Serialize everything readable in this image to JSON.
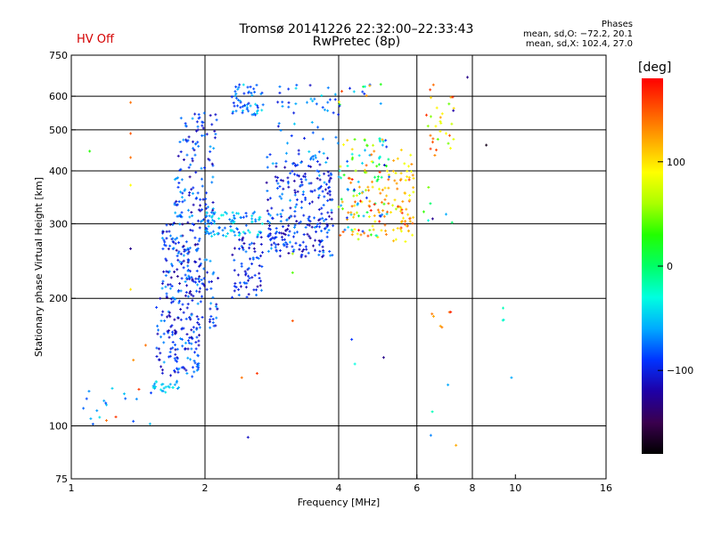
{
  "header": {
    "title": "Tromsø 20141226 22:32:00–22:33:43",
    "subtitle": "RwPretec (8p)",
    "status": "HV Off"
  },
  "phases": {
    "title": "Phases",
    "o_stats": "mean, sd,O: −72.2, 20.1",
    "x_stats": "mean, sd,X: 102.4, 27.0"
  },
  "colorbar": {
    "label": "[deg]",
    "ticks": [
      "100",
      "0",
      "−100"
    ],
    "tick_values": [
      100,
      0,
      -100
    ],
    "range": [
      -180,
      180
    ],
    "colors": [
      "#000000",
      "#3a004e",
      "#1e00a6",
      "#0033ff",
      "#00aaff",
      "#00ffe0",
      "#00ff66",
      "#22ff00",
      "#aaff00",
      "#ffff00",
      "#ffaa00",
      "#ff5500",
      "#ff0000"
    ]
  },
  "chart_data": {
    "type": "scatter",
    "title": "Tromsø 20141226 22:32:00–22:33:43",
    "subtitle": "RwPretec (8p)",
    "xlabel": "Frequency [MHz]",
    "ylabel": "Stationary phase Virtual Height [km]",
    "x_scale": "log",
    "y_scale": "log",
    "xlim": [
      1,
      16
    ],
    "ylim": [
      75,
      750
    ],
    "x_ticks": [
      1,
      2,
      4,
      6,
      8,
      10,
      16
    ],
    "y_ticks": [
      75,
      100,
      200,
      300,
      400,
      500,
      600,
      750
    ],
    "x_gridlines": [
      2,
      4,
      6,
      8
    ],
    "y_gridlines": [
      100,
      200,
      300,
      400,
      500,
      600
    ],
    "grid": true,
    "clusters": [
      {
        "fmin": 1.05,
        "fmax": 1.55,
        "hmin": 100,
        "hmax": 125,
        "n": 18,
        "pmin": -90,
        "pmax": -40
      },
      {
        "fmin": 1.5,
        "fmax": 1.75,
        "hmin": 120,
        "hmax": 128,
        "n": 25,
        "pmin": -70,
        "pmax": -30
      },
      {
        "fmin": 1.55,
        "fmax": 1.95,
        "hmin": 130,
        "hmax": 200,
        "n": 140,
        "pmin": -125,
        "pmax": -60
      },
      {
        "fmin": 1.6,
        "fmax": 1.95,
        "hmin": 200,
        "hmax": 300,
        "n": 140,
        "pmin": -130,
        "pmax": -60
      },
      {
        "fmin": 1.7,
        "fmax": 2.1,
        "hmin": 300,
        "hmax": 440,
        "n": 90,
        "pmin": -125,
        "pmax": -55
      },
      {
        "fmin": 1.75,
        "fmax": 2.15,
        "hmin": 440,
        "hmax": 550,
        "n": 45,
        "pmin": -120,
        "pmax": -60
      },
      {
        "fmin": 1.9,
        "fmax": 2.15,
        "hmin": 170,
        "hmax": 250,
        "n": 45,
        "pmin": -120,
        "pmax": -60
      },
      {
        "fmin": 2.0,
        "fmax": 2.7,
        "hmin": 280,
        "hmax": 320,
        "n": 90,
        "pmin": -90,
        "pmax": -30
      },
      {
        "fmin": 2.3,
        "fmax": 2.7,
        "hmin": 200,
        "hmax": 280,
        "n": 70,
        "pmin": -125,
        "pmax": -70
      },
      {
        "fmin": 2.3,
        "fmax": 2.75,
        "hmin": 540,
        "hmax": 640,
        "n": 55,
        "pmin": -100,
        "pmax": -40
      },
      {
        "fmin": 2.75,
        "fmax": 3.9,
        "hmin": 250,
        "hmax": 320,
        "n": 150,
        "pmin": -125,
        "pmax": -60
      },
      {
        "fmin": 2.75,
        "fmax": 3.9,
        "hmin": 320,
        "hmax": 440,
        "n": 130,
        "pmin": -125,
        "pmax": -55
      },
      {
        "fmin": 2.9,
        "fmax": 4.0,
        "hmin": 440,
        "hmax": 640,
        "n": 45,
        "pmin": -110,
        "pmax": -40
      },
      {
        "fmin": 4.0,
        "fmax": 5.2,
        "hmin": 280,
        "hmax": 480,
        "n": 110,
        "pmin": -110,
        "pmax": 150
      },
      {
        "fmin": 4.2,
        "fmax": 5.9,
        "hmin": 270,
        "hmax": 400,
        "n": 70,
        "pmin": 60,
        "pmax": 175
      },
      {
        "fmin": 5.3,
        "fmax": 5.9,
        "hmin": 270,
        "hmax": 450,
        "n": 45,
        "pmin": 80,
        "pmax": 130
      },
      {
        "fmin": 4.0,
        "fmax": 5.0,
        "hmin": 560,
        "hmax": 640,
        "n": 15,
        "pmin": -100,
        "pmax": 160
      },
      {
        "fmin": 6.3,
        "fmax": 7.3,
        "hmin": 430,
        "hmax": 640,
        "n": 30,
        "pmin": 40,
        "pmax": 170
      },
      {
        "fmin": 6.2,
        "fmax": 7.0,
        "hmin": 300,
        "hmax": 380,
        "n": 6,
        "pmin": -130,
        "pmax": 60
      },
      {
        "fmin": 6.4,
        "fmax": 7.2,
        "hmin": 170,
        "hmax": 190,
        "n": 6,
        "pmin": 120,
        "pmax": 170
      },
      {
        "fmin": 9.3,
        "fmax": 9.6,
        "hmin": 175,
        "hmax": 190,
        "n": 3,
        "pmin": -40,
        "pmax": 0
      }
    ],
    "points": [
      {
        "x": 1.36,
        "y": 580,
        "p": 140
      },
      {
        "x": 1.36,
        "y": 490,
        "p": 150
      },
      {
        "x": 1.36,
        "y": 430,
        "p": 140
      },
      {
        "x": 1.36,
        "y": 370,
        "p": 90
      },
      {
        "x": 1.36,
        "y": 262,
        "p": -130
      },
      {
        "x": 1.36,
        "y": 210,
        "p": 100
      },
      {
        "x": 1.38,
        "y": 143,
        "p": 130
      },
      {
        "x": 1.2,
        "y": 103,
        "p": 140
      },
      {
        "x": 1.26,
        "y": 105,
        "p": 160
      },
      {
        "x": 1.1,
        "y": 445,
        "p": 30
      },
      {
        "x": 1.42,
        "y": 122,
        "p": 160
      },
      {
        "x": 1.47,
        "y": 155,
        "p": 140
      },
      {
        "x": 2.42,
        "y": 130,
        "p": 140
      },
      {
        "x": 2.5,
        "y": 94,
        "p": -110
      },
      {
        "x": 2.62,
        "y": 133,
        "p": 160
      },
      {
        "x": 3.15,
        "y": 255,
        "p": 60
      },
      {
        "x": 3.15,
        "y": 230,
        "p": 40
      },
      {
        "x": 3.15,
        "y": 177,
        "p": 150
      },
      {
        "x": 4.28,
        "y": 160,
        "p": -90
      },
      {
        "x": 4.35,
        "y": 140,
        "p": -30
      },
      {
        "x": 5.05,
        "y": 145,
        "p": -130
      },
      {
        "x": 6.45,
        "y": 95,
        "p": -70
      },
      {
        "x": 6.5,
        "y": 108,
        "p": -20
      },
      {
        "x": 7.05,
        "y": 125,
        "p": -60
      },
      {
        "x": 7.35,
        "y": 90,
        "p": 120
      },
      {
        "x": 7.2,
        "y": 302,
        "p": 0
      },
      {
        "x": 7.25,
        "y": 555,
        "p": -120
      },
      {
        "x": 8.6,
        "y": 460,
        "p": -170
      },
      {
        "x": 7.8,
        "y": 665,
        "p": -130
      },
      {
        "x": 9.8,
        "y": 130,
        "p": -60
      }
    ]
  }
}
